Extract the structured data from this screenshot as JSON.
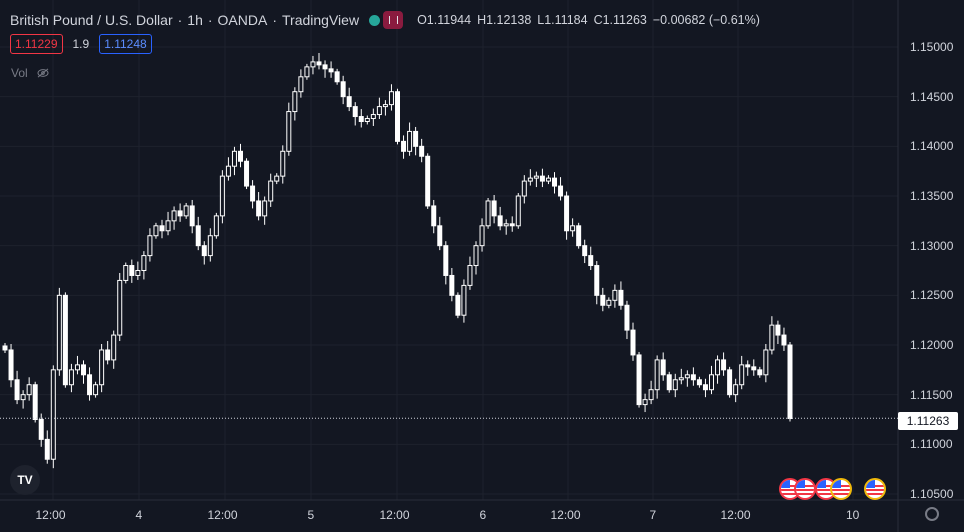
{
  "header": {
    "symbol": "British Pound / U.S. Dollar",
    "sep1": "·",
    "interval": "1h",
    "sep2": "·",
    "broker": "OANDA",
    "sep3": "·",
    "platform": "TradingView",
    "ohlc": {
      "o_key": "O",
      "o_val": "1.11944",
      "h_key": "H",
      "h_val": "1.12138",
      "l_key": "L",
      "l_val": "1.11184",
      "c_key": "C",
      "c_val": "1.11263",
      "change": "−0.00682 (−0.61%)"
    }
  },
  "quote": {
    "bid": "1.11229",
    "spread": "1.9",
    "ask": "1.11248"
  },
  "volume": {
    "label": "Vol"
  },
  "price_axis": {
    "labels": [
      "1.15000",
      "1.14500",
      "1.14000",
      "1.13500",
      "1.13000",
      "1.12500",
      "1.12000",
      "1.11500",
      "1.11000",
      "1.10500"
    ],
    "last_price": "1.11263"
  },
  "time_axis": {
    "labels": [
      "12:00",
      "4",
      "12:00",
      "5",
      "12:00",
      "6",
      "12:00",
      "7",
      "12:00",
      "10"
    ]
  },
  "colors": {
    "background": "#131722",
    "grid": "#1e222d",
    "candle": "#ffffff",
    "bid": "#f23645",
    "ask": "#2962ff"
  },
  "icons": [
    "tradingview-logo-icon",
    "us-flag-icon",
    "eye-slash-icon",
    "gear-icon"
  ],
  "chart_data": {
    "type": "candlestick",
    "ylim": [
      1.1035,
      1.1525
    ],
    "closes": [
      1.1195,
      1.1165,
      1.1145,
      1.115,
      1.116,
      1.1125,
      1.1105,
      1.1085,
      1.1175,
      1.125,
      1.116,
      1.1175,
      1.118,
      1.117,
      1.115,
      1.116,
      1.1195,
      1.1185,
      1.121,
      1.1265,
      1.128,
      1.127,
      1.1275,
      1.129,
      1.131,
      1.132,
      1.1315,
      1.1325,
      1.1335,
      1.133,
      1.134,
      1.132,
      1.13,
      1.129,
      1.131,
      1.133,
      1.137,
      1.138,
      1.1395,
      1.1385,
      1.136,
      1.1345,
      1.133,
      1.1345,
      1.1365,
      1.137,
      1.1395,
      1.1435,
      1.1455,
      1.147,
      1.148,
      1.1485,
      1.1482,
      1.1478,
      1.1475,
      1.1465,
      1.145,
      1.144,
      1.143,
      1.1425,
      1.1428,
      1.1432,
      1.144,
      1.1442,
      1.1455,
      1.1405,
      1.1395,
      1.1415,
      1.14,
      1.139,
      1.134,
      1.132,
      1.13,
      1.127,
      1.125,
      1.123,
      1.126,
      1.128,
      1.13,
      1.132,
      1.1345,
      1.133,
      1.132,
      1.1322,
      1.132,
      1.135,
      1.1365,
      1.1368,
      1.137,
      1.1365,
      1.1368,
      1.136,
      1.135,
      1.1315,
      1.132,
      1.13,
      1.129,
      1.128,
      1.125,
      1.124,
      1.1245,
      1.1255,
      1.124,
      1.1215,
      1.119,
      1.114,
      1.1145,
      1.1155,
      1.1185,
      1.117,
      1.1155,
      1.1165,
      1.1167,
      1.117,
      1.1165,
      1.116,
      1.1155,
      1.117,
      1.1185,
      1.1175,
      1.115,
      1.116,
      1.118,
      1.1178,
      1.1175,
      1.117,
      1.1195,
      1.122,
      1.121,
      1.12,
      1.1126
    ]
  }
}
